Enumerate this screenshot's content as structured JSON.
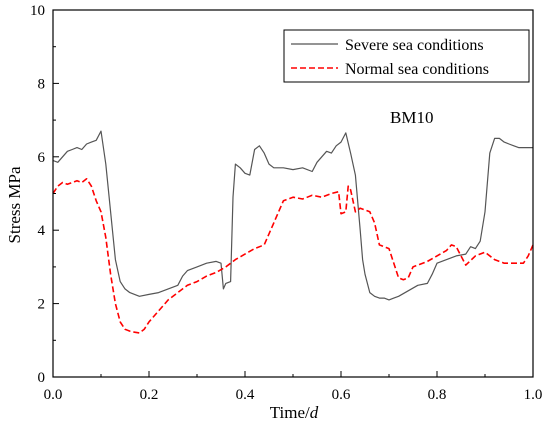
{
  "chart_data": {
    "type": "line",
    "xlabel_main": "Time/",
    "xlabel_italic": "d",
    "ylabel": "Stress  MPa",
    "xlim": [
      0.0,
      1.0
    ],
    "ylim": [
      0,
      10
    ],
    "xticks": [
      0.0,
      0.2,
      0.4,
      0.6,
      0.8,
      1.0
    ],
    "xtick_labels": [
      "0.0",
      "0.2",
      "0.4",
      "0.6",
      "0.8",
      "1.0"
    ],
    "yticks": [
      0,
      2,
      4,
      6,
      8,
      10
    ],
    "ytick_labels": [
      "0",
      "2",
      "4",
      "6",
      "8",
      "10"
    ],
    "grid": false,
    "legend_position": "top-right",
    "annotation": "BM10",
    "series": [
      {
        "name": "Severe sea conditions",
        "color": "#555555",
        "dash": "solid",
        "x": [
          0.0,
          0.01,
          0.02,
          0.03,
          0.04,
          0.05,
          0.06,
          0.07,
          0.08,
          0.09,
          0.1,
          0.11,
          0.12,
          0.13,
          0.14,
          0.15,
          0.16,
          0.17,
          0.18,
          0.2,
          0.22,
          0.24,
          0.26,
          0.27,
          0.28,
          0.3,
          0.32,
          0.34,
          0.35,
          0.355,
          0.36,
          0.37,
          0.375,
          0.38,
          0.39,
          0.4,
          0.41,
          0.42,
          0.43,
          0.44,
          0.45,
          0.46,
          0.48,
          0.5,
          0.52,
          0.54,
          0.55,
          0.56,
          0.57,
          0.58,
          0.59,
          0.6,
          0.61,
          0.62,
          0.63,
          0.64,
          0.645,
          0.65,
          0.66,
          0.67,
          0.68,
          0.69,
          0.7,
          0.71,
          0.72,
          0.74,
          0.76,
          0.78,
          0.79,
          0.8,
          0.82,
          0.84,
          0.86,
          0.87,
          0.88,
          0.89,
          0.9,
          0.91,
          0.92,
          0.93,
          0.94,
          0.95,
          0.96,
          0.97,
          0.98,
          1.0
        ],
        "y": [
          5.9,
          5.85,
          6.0,
          6.15,
          6.2,
          6.25,
          6.2,
          6.35,
          6.4,
          6.45,
          6.7,
          5.8,
          4.5,
          3.2,
          2.6,
          2.4,
          2.3,
          2.25,
          2.2,
          2.25,
          2.3,
          2.4,
          2.5,
          2.75,
          2.9,
          3.0,
          3.1,
          3.15,
          3.1,
          2.4,
          2.55,
          2.6,
          4.9,
          5.8,
          5.7,
          5.55,
          5.5,
          6.2,
          6.3,
          6.1,
          5.8,
          5.7,
          5.7,
          5.65,
          5.7,
          5.6,
          5.85,
          6.0,
          6.15,
          6.1,
          6.3,
          6.4,
          6.65,
          6.1,
          5.5,
          4.0,
          3.2,
          2.8,
          2.3,
          2.2,
          2.15,
          2.15,
          2.1,
          2.15,
          2.2,
          2.35,
          2.5,
          2.55,
          2.8,
          3.1,
          3.2,
          3.3,
          3.35,
          3.55,
          3.5,
          3.7,
          4.5,
          6.1,
          6.5,
          6.5,
          6.4,
          6.35,
          6.3,
          6.25,
          6.25,
          6.25
        ]
      },
      {
        "name": "Normal sea conditions",
        "color": "#ff0000",
        "dash": "dashed",
        "x": [
          0.0,
          0.01,
          0.02,
          0.03,
          0.04,
          0.05,
          0.06,
          0.07,
          0.08,
          0.09,
          0.1,
          0.11,
          0.12,
          0.13,
          0.14,
          0.15,
          0.16,
          0.17,
          0.18,
          0.19,
          0.2,
          0.22,
          0.24,
          0.26,
          0.28,
          0.3,
          0.32,
          0.34,
          0.36,
          0.38,
          0.4,
          0.42,
          0.44,
          0.46,
          0.48,
          0.5,
          0.52,
          0.54,
          0.56,
          0.58,
          0.595,
          0.6,
          0.61,
          0.615,
          0.62,
          0.63,
          0.64,
          0.65,
          0.66,
          0.67,
          0.68,
          0.7,
          0.72,
          0.73,
          0.74,
          0.75,
          0.76,
          0.78,
          0.8,
          0.82,
          0.83,
          0.84,
          0.85,
          0.86,
          0.88,
          0.9,
          0.92,
          0.94,
          0.96,
          0.98,
          0.99,
          1.0
        ],
        "y": [
          5.0,
          5.2,
          5.3,
          5.25,
          5.3,
          5.35,
          5.3,
          5.4,
          5.2,
          4.8,
          4.5,
          3.8,
          2.8,
          2.0,
          1.5,
          1.3,
          1.25,
          1.22,
          1.2,
          1.3,
          1.5,
          1.8,
          2.1,
          2.3,
          2.5,
          2.6,
          2.75,
          2.85,
          3.0,
          3.2,
          3.35,
          3.5,
          3.6,
          4.2,
          4.8,
          4.9,
          4.85,
          4.95,
          4.9,
          5.0,
          5.05,
          4.45,
          4.5,
          5.2,
          5.1,
          4.5,
          4.6,
          4.55,
          4.5,
          4.2,
          3.6,
          3.5,
          2.7,
          2.65,
          2.7,
          3.0,
          3.05,
          3.15,
          3.3,
          3.45,
          3.6,
          3.55,
          3.3,
          3.05,
          3.3,
          3.4,
          3.2,
          3.1,
          3.1,
          3.1,
          3.3,
          3.6
        ]
      }
    ]
  }
}
